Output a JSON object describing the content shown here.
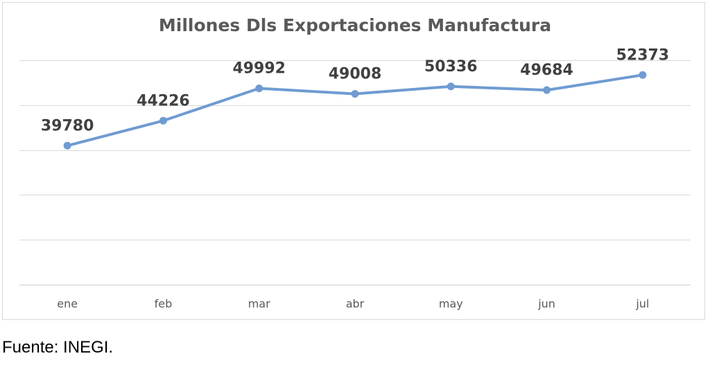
{
  "chart_data": {
    "type": "line",
    "title": "Millones Dls Exportaciones Manufactura",
    "categories": [
      "ene",
      "feb",
      "mar",
      "abr",
      "may",
      "jun",
      "jul"
    ],
    "series": [
      {
        "values": [
          39780,
          44226,
          49992,
          49008,
          50336,
          49684,
          52373
        ]
      }
    ],
    "ylim": [
      15000,
      55000
    ],
    "grid": true,
    "line_color": "#6f9bd2",
    "data_labels": true
  },
  "footer": {
    "source": "Fuente: INEGI."
  }
}
